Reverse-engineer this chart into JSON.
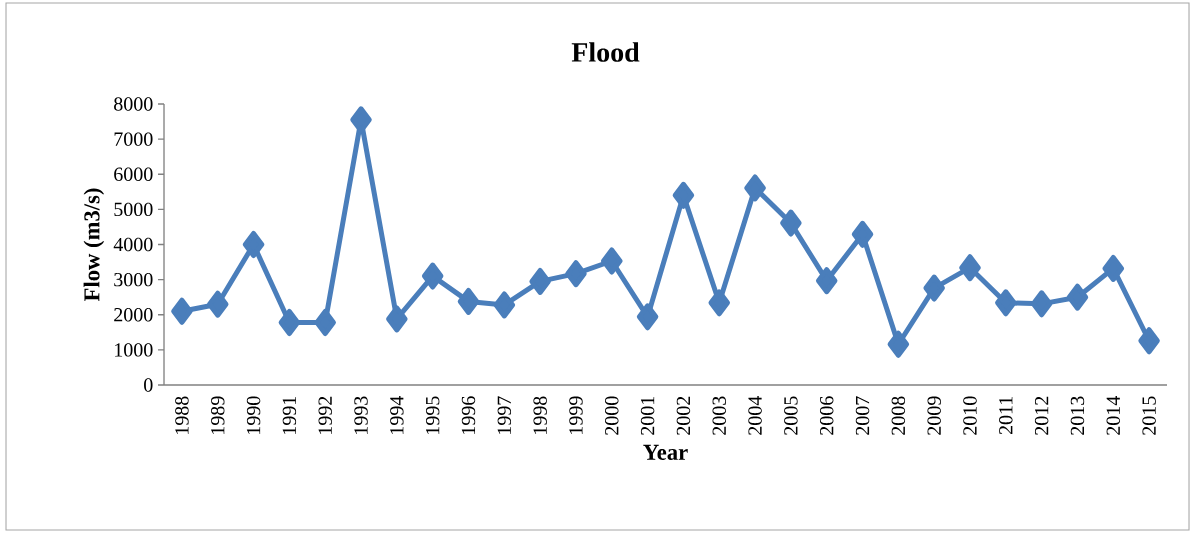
{
  "chart_data": {
    "type": "line",
    "title": "Flood",
    "xlabel": "Year",
    "ylabel": "Flow (m3/s)",
    "categories": [
      "1988",
      "1989",
      "1990",
      "1991",
      "1992",
      "1993",
      "1994",
      "1995",
      "1996",
      "1997",
      "1998",
      "1999",
      "2000",
      "2001",
      "2002",
      "2003",
      "2004",
      "2005",
      "2006",
      "2007",
      "2008",
      "2009",
      "2010",
      "2011",
      "2012",
      "2013",
      "2014",
      "2015"
    ],
    "values": [
      2100,
      2300,
      4000,
      1780,
      1780,
      7550,
      1880,
      3100,
      2380,
      2280,
      2950,
      3170,
      3530,
      1940,
      5400,
      2340,
      5610,
      4610,
      2970,
      4290,
      1160,
      2760,
      3340,
      2340,
      2310,
      2500,
      3320,
      1260
    ],
    "color": "#4a7ebb",
    "marker": "diamond",
    "line_style": "solid",
    "ylim": [
      0,
      8000
    ],
    "yticks": [
      0,
      1000,
      2000,
      3000,
      4000,
      5000,
      6000,
      7000,
      8000
    ]
  }
}
